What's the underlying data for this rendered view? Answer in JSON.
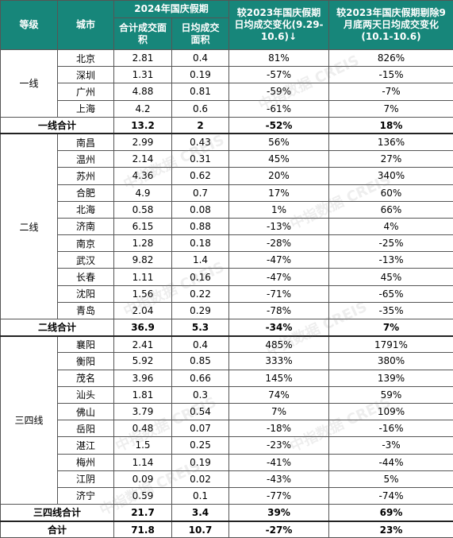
{
  "header": {
    "level": "等级",
    "city": "城市",
    "period": "2024年国庆假期",
    "total_area": "合计成交面积",
    "daily_area": "日均成交面积",
    "change_1": "较2023年国庆假期日均成交变化(9.29-10.6)↓",
    "change_2": "较2023年国庆假期剔除9月底两天日均成交变化(10.1-10.6)"
  },
  "watermark": "中指数据 CREIS",
  "groups": [
    {
      "level": "一线",
      "rows": [
        [
          "北京",
          "2.81",
          "0.4",
          "81%",
          "826%"
        ],
        [
          "深圳",
          "1.31",
          "0.19",
          "-57%",
          "-15%"
        ],
        [
          "广州",
          "4.88",
          "0.81",
          "-59%",
          "-7%"
        ],
        [
          "上海",
          "4.2",
          "0.6",
          "-61%",
          "7%"
        ]
      ],
      "subtotal": [
        "一线合计",
        "13.2",
        "2",
        "-52%",
        "18%"
      ]
    },
    {
      "level": "二线",
      "rows": [
        [
          "南昌",
          "2.99",
          "0.43",
          "56%",
          "136%"
        ],
        [
          "温州",
          "2.14",
          "0.31",
          "45%",
          "27%"
        ],
        [
          "苏州",
          "4.36",
          "0.62",
          "20%",
          "340%"
        ],
        [
          "合肥",
          "4.9",
          "0.7",
          "17%",
          "60%"
        ],
        [
          "北海",
          "0.58",
          "0.08",
          "1%",
          "66%"
        ],
        [
          "济南",
          "6.15",
          "0.88",
          "-13%",
          "4%"
        ],
        [
          "南京",
          "1.28",
          "0.18",
          "-28%",
          "-25%"
        ],
        [
          "武汉",
          "9.82",
          "1.4",
          "-47%",
          "-13%"
        ],
        [
          "长春",
          "1.11",
          "0.16",
          "-47%",
          "45%"
        ],
        [
          "沈阳",
          "1.56",
          "0.22",
          "-71%",
          "-65%"
        ],
        [
          "青岛",
          "2.04",
          "0.29",
          "-78%",
          "-35%"
        ]
      ],
      "subtotal": [
        "二线合计",
        "36.9",
        "5.3",
        "-34%",
        "7%"
      ]
    },
    {
      "level": "三四线",
      "rows": [
        [
          "襄阳",
          "2.41",
          "0.4",
          "485%",
          "1791%"
        ],
        [
          "衡阳",
          "5.92",
          "0.85",
          "333%",
          "380%"
        ],
        [
          "茂名",
          "3.96",
          "0.66",
          "145%",
          "139%"
        ],
        [
          "汕头",
          "1.81",
          "0.3",
          "74%",
          "59%"
        ],
        [
          "佛山",
          "3.79",
          "0.54",
          "7%",
          "109%"
        ],
        [
          "岳阳",
          "0.48",
          "0.07",
          "-18%",
          "-16%"
        ],
        [
          "湛江",
          "1.5",
          "0.25",
          "-23%",
          "-3%"
        ],
        [
          "梅州",
          "1.14",
          "0.19",
          "-41%",
          "-44%"
        ],
        [
          "江阴",
          "0.09",
          "0.02",
          "-43%",
          "5%"
        ],
        [
          "济宁",
          "0.59",
          "0.1",
          "-77%",
          "-74%"
        ]
      ],
      "subtotal": [
        "三四线合计",
        "21.7",
        "3.4",
        "39%",
        "69%"
      ]
    }
  ],
  "total": [
    "合计",
    "71.8",
    "10.7",
    "-27%",
    "23%"
  ]
}
